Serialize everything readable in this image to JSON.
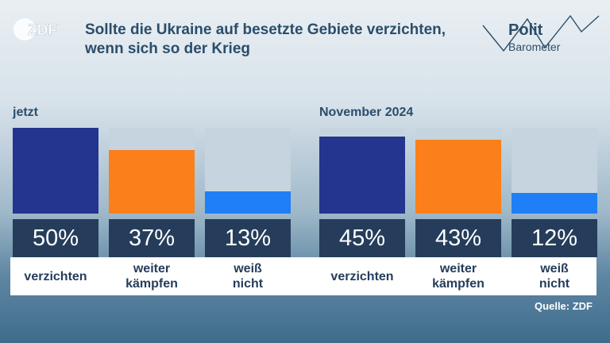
{
  "header": {
    "title": "Sollte die Ukraine auf besetzte Gebiete verzichten, wenn sich so der Krieg",
    "logo_text": "ZDF",
    "brand_top": "Polit",
    "brand_bottom": "Barometer"
  },
  "chart_data": [
    {
      "type": "bar",
      "title": "jetzt",
      "categories": [
        "verzichten",
        "weiter kämpfen",
        "weiß nicht"
      ],
      "values": [
        50,
        37,
        13
      ],
      "value_labels": [
        "50%",
        "37%",
        "13%"
      ],
      "ylim": [
        0,
        50
      ],
      "colors": [
        "#23358f",
        "#fb7f1a",
        "#1f7ff6"
      ]
    },
    {
      "type": "bar",
      "title": "November 2024",
      "categories": [
        "verzichten",
        "weiter kämpfen",
        "weiß nicht"
      ],
      "values": [
        45,
        43,
        12
      ],
      "value_labels": [
        "45%",
        "43%",
        "12%"
      ],
      "ylim": [
        0,
        50
      ],
      "colors": [
        "#23358f",
        "#fb7f1a",
        "#1f7ff6"
      ]
    }
  ],
  "source": "Quelle: ZDF"
}
